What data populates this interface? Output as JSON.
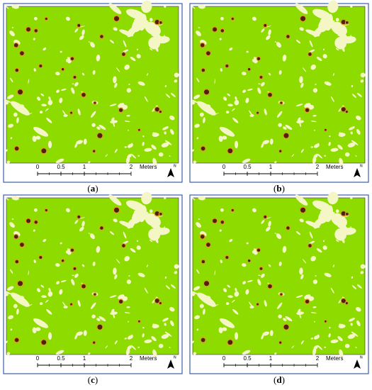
{
  "panels": [
    {
      "label": "(a)"
    },
    {
      "label": "(b)"
    },
    {
      "label": "(c)"
    },
    {
      "label": "(d)"
    }
  ],
  "scale_bar": {
    "ticks": [
      0,
      0.5,
      1,
      2
    ],
    "unit": "Meters"
  },
  "north_label": "N"
}
